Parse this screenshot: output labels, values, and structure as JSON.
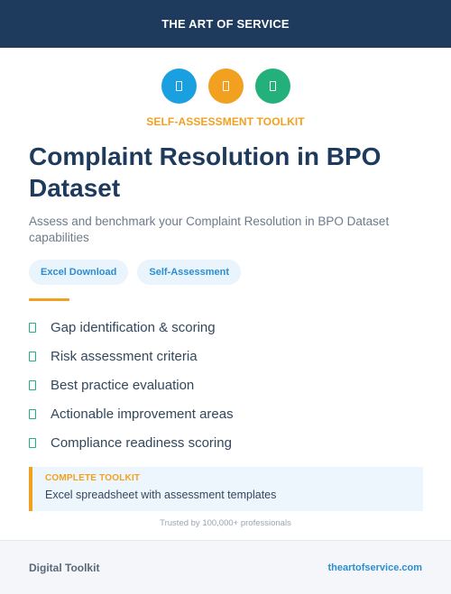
{
  "header": {
    "brand": "THE ART OF SERVICE"
  },
  "icons": [
    {
      "name": "document-icon",
      "color": "#1a9fe0"
    },
    {
      "name": "document-icon",
      "color": "#f2a01f"
    },
    {
      "name": "document-icon",
      "color": "#23b07a"
    }
  ],
  "kicker": "SELF-ASSESSMENT TOOLKIT",
  "title": "Complaint Resolution in BPO Dataset",
  "subtitle": "Assess and benchmark your Complaint Resolution in BPO Dataset capabilities",
  "tags": [
    "Excel Download",
    "Self-Assessment"
  ],
  "features": [
    "Gap identification & scoring",
    "Risk assessment criteria",
    "Best practice evaluation",
    "Actionable improvement areas",
    "Compliance readiness scoring"
  ],
  "callout": {
    "label": "COMPLETE TOOLKIT",
    "description": "Excel spreadsheet with assessment templates"
  },
  "trusted": "Trusted by 100,000+ professionals",
  "footer": {
    "left": "Digital Toolkit",
    "right": "theartofservice.com"
  },
  "colors": {
    "navy": "#1e3a5c",
    "accent": "#f2a01f",
    "blue": "#1a9fe0",
    "green": "#23b07a"
  }
}
